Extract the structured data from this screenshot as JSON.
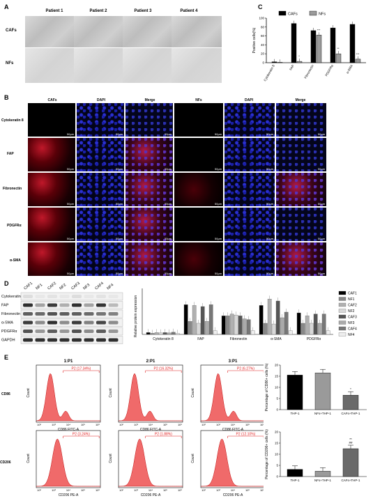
{
  "panels": {
    "a": "A",
    "b": "B",
    "c": "C",
    "d": "D",
    "e": "E"
  },
  "A": {
    "patients": [
      "Patient 1",
      "Patient 2",
      "Patient 3",
      "Patient 4"
    ],
    "rows": [
      "CAFs",
      "NFs"
    ]
  },
  "C": {
    "legend": [
      "CAFs",
      "NFs"
    ]
  },
  "B": {
    "columns": [
      "CAFs",
      "DAPI",
      "Merge",
      "NFs",
      "DAPI",
      "Merge"
    ],
    "rows": [
      "Cytokeratin 8",
      "FAP",
      "Fibronectin",
      "PDGFRα",
      "α-SMA"
    ],
    "scale": "50μm"
  },
  "D": {
    "lanes": [
      "CAF1",
      "NF1",
      "CAF2",
      "NF2",
      "CAF3",
      "NF3",
      "CAF4",
      "NF4"
    ],
    "blots": [
      "Cytokeratin 8",
      "FAP",
      "Fibronectin",
      "α-SMA",
      "PDGFRα",
      "GAPDH"
    ],
    "legend": [
      "CAF1",
      "NF1",
      "CAF2",
      "NF2",
      "CAF3",
      "NF3",
      "CAF4",
      "NF4"
    ]
  },
  "E": {
    "flow_titles": [
      "1:P1",
      "2:P1",
      "3:P1"
    ],
    "row_labels": [
      "CD86",
      "CD206"
    ],
    "gates_cd86": [
      "P2 (17.34%)",
      "P2 (16.32%)",
      "P2 (6.27%)"
    ],
    "gates_cd206": [
      "P2 (3.24%)",
      "P2 (1.88%)",
      "P2 (12.10%)"
    ],
    "x_cd86": "CD86 FITC-A",
    "x_cd206": "CD206 PE-A",
    "ylab": "Count",
    "xticks": [
      "10²",
      "10³",
      "10⁴",
      "10⁵",
      "10⁶"
    ],
    "bar_groups": [
      "THP-1",
      "NFs+THP-1",
      "CAFs+THP-1"
    ],
    "sig_top": "*",
    "sig_bottom": [
      "**",
      "##"
    ]
  },
  "chart_data": [
    {
      "type": "bar",
      "panel": "C",
      "categories": [
        "Cytokeratin 8",
        "FAP",
        "Fibronectin",
        "PDGFRα",
        "α-SMA"
      ],
      "series": [
        {
          "name": "CAFs",
          "values": [
            2,
            88,
            72,
            78,
            86
          ]
        },
        {
          "name": "NFs",
          "values": [
            1,
            3,
            62,
            20,
            8
          ]
        }
      ],
      "ylabel": "Positive cells(%)",
      "yticks": [
        "0",
        "20",
        "40",
        "60",
        "80",
        "100"
      ],
      "ylim": [
        0,
        100
      ],
      "annotations": [
        "*",
        "***",
        "**",
        "***"
      ],
      "colors": [
        "#000000",
        "#9a9a9a"
      ]
    },
    {
      "type": "bar",
      "panel": "D",
      "categories": [
        "Cytokeratin 8",
        "FAP",
        "Fibronectin",
        "α-SMA",
        "PDGFRα"
      ],
      "series": [
        {
          "name": "CAF1",
          "values": [
            0.05,
            0.8,
            0.5,
            0.78,
            0.58
          ]
        },
        {
          "name": "NF1",
          "values": [
            0.03,
            0.35,
            0.5,
            0.3,
            0.3
          ]
        },
        {
          "name": "CAF2",
          "values": [
            0.05,
            0.78,
            0.55,
            0.95,
            0.5
          ]
        },
        {
          "name": "NF2",
          "values": [
            0.04,
            0.3,
            0.52,
            0.28,
            0.3
          ]
        },
        {
          "name": "CAF3",
          "values": [
            0.05,
            0.75,
            0.5,
            0.9,
            0.55
          ]
        },
        {
          "name": "NF3",
          "values": [
            0.04,
            0.35,
            0.42,
            0.45,
            0.3
          ]
        },
        {
          "name": "CAF4",
          "values": [
            0.06,
            0.8,
            0.4,
            0.6,
            0.55
          ]
        },
        {
          "name": "NF4",
          "values": [
            0.03,
            0.1,
            0.1,
            0.1,
            0.1
          ]
        }
      ],
      "ylabel": "Relative protein expression",
      "ylim": [
        0,
        1.2
      ],
      "colors": [
        "#000000",
        "#888888",
        "#b0b0b0",
        "#d8d8d8",
        "#555555",
        "#aaaaaa",
        "#777777",
        "#eeeeee"
      ]
    },
    {
      "type": "bar",
      "panel": "E-top",
      "categories": [
        "THP-1",
        "NFs+THP-1",
        "CAFs+THP-1"
      ],
      "values": [
        15.5,
        16.5,
        6.5
      ],
      "ylabel": "Percentage of CD86+ cells (%)",
      "yticks": [
        "0",
        "5",
        "10",
        "15",
        "20"
      ],
      "ylim": [
        0,
        20
      ],
      "colors": [
        "#000000",
        "#9a9a9a",
        "#6a6a6a"
      ]
    },
    {
      "type": "bar",
      "panel": "E-bottom",
      "categories": [
        "THP-1",
        "NFs+THP-1",
        "CAFs+THP-1"
      ],
      "values": [
        3.2,
        2.4,
        12.5
      ],
      "ylabel": "Percentage of CD206+ cells (%)",
      "yticks": [
        "0",
        "5",
        "10",
        "15",
        "20"
      ],
      "ylim": [
        0,
        20
      ],
      "colors": [
        "#000000",
        "#9a9a9a",
        "#6a6a6a"
      ]
    }
  ]
}
